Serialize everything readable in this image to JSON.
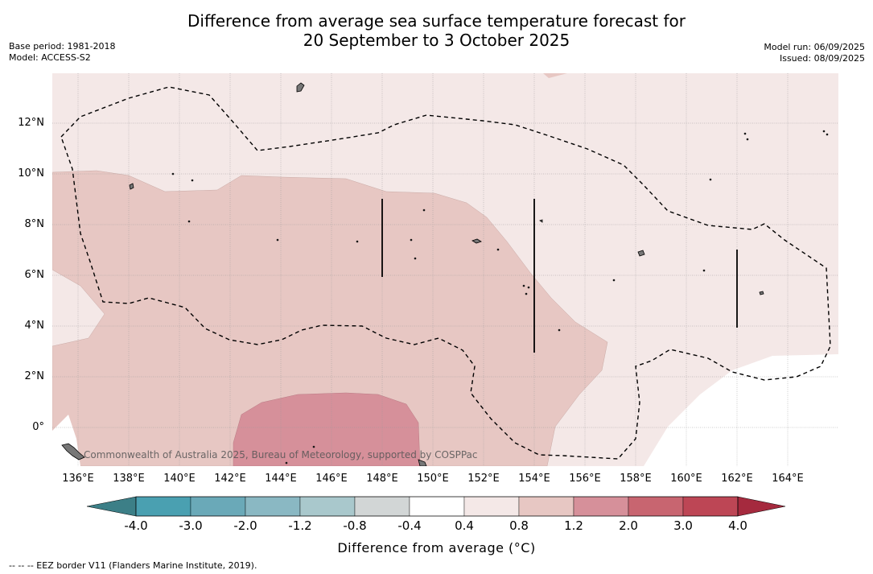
{
  "title": {
    "line1": "Difference from average sea surface temperature forecast for",
    "line2": "20 September to 3 October 2025"
  },
  "meta_left": {
    "base_period": "Base period: 1981-2018",
    "model": "Model: ACCESS-S2"
  },
  "meta_right": {
    "model_run": "Model run: 06/09/2025",
    "issued": "Issued: 08/09/2025"
  },
  "map": {
    "lat_labels": [
      "12°N",
      "10°N",
      "8°N",
      "6°N",
      "4°N",
      "2°N",
      "0°"
    ],
    "lon_labels": [
      "136°E",
      "138°E",
      "140°E",
      "142°E",
      "144°E",
      "146°E",
      "148°E",
      "150°E",
      "152°E",
      "154°E",
      "156°E",
      "158°E",
      "160°E",
      "162°E",
      "164°E"
    ],
    "watermark": "Commonwealth of Australia 2025, Bureau of Meteorology, supported by COSPPac",
    "colors": {
      "base": "#f4e8e7",
      "anom_0_8": "#e7c7c3",
      "anom_1_2": "#d6909a",
      "white": "#ffffff"
    }
  },
  "colorbar": {
    "labels": [
      "-4.0",
      "-3.0",
      "-2.0",
      "-1.2",
      "-0.8",
      "-0.4",
      "0.4",
      "0.8",
      "1.2",
      "2.0",
      "3.0",
      "4.0"
    ],
    "colors": [
      "#3c7f87",
      "#4aa0b1",
      "#6aa9b8",
      "#8ab8c3",
      "#a9c8cc",
      "#d2d6d6",
      "#ffffff",
      "#f4e8e7",
      "#e7c7c3",
      "#d6909a",
      "#c86570",
      "#bd4655",
      "#a52a3e"
    ],
    "title": "Difference from average (°C)"
  },
  "footnote": "--  --  -- EEZ border V11 (Flanders Marine Institute, 2019)."
}
